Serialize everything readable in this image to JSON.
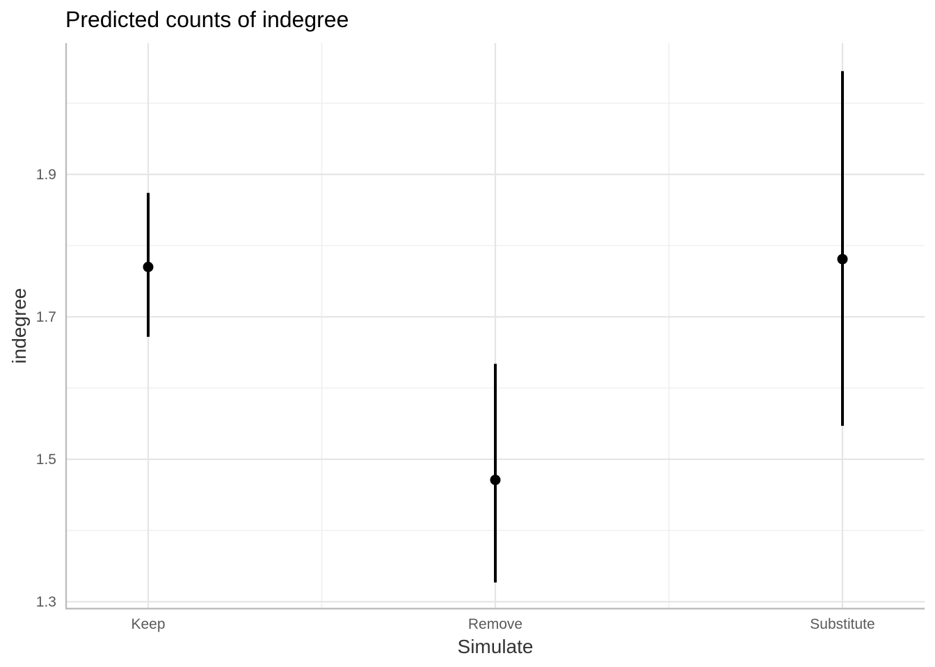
{
  "chart_data": {
    "type": "pointrange",
    "title": "Predicted counts of indegree",
    "xlabel": "Simulate",
    "ylabel": "indegree",
    "categories": [
      "Keep",
      "Remove",
      "Substitute"
    ],
    "y_ticks": [
      1.3,
      1.5,
      1.7,
      1.9
    ],
    "y_tick_labels": [
      "1.3",
      "1.5",
      "1.7",
      "1.9"
    ],
    "ylim": [
      1.29,
      2.09
    ],
    "points": [
      {
        "category": "Keep",
        "estimate": 1.77,
        "lower": 1.672,
        "upper": 1.874
      },
      {
        "category": "Remove",
        "estimate": 1.471,
        "lower": 1.327,
        "upper": 1.634
      },
      {
        "category": "Substitute",
        "estimate": 1.781,
        "lower": 1.547,
        "upper": 2.045
      }
    ],
    "grid": true,
    "legend": "none",
    "colors": {
      "point": "#000000",
      "errorbar": "#000000"
    }
  }
}
